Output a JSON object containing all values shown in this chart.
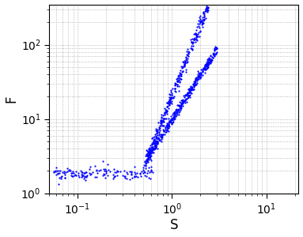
{
  "xlabel": "S",
  "ylabel": "F",
  "xlim": [
    0.05,
    22
  ],
  "ylim": [
    1.0,
    350
  ],
  "dot_color": "#0000FF",
  "dot_size": 2.5,
  "background_color": "#ffffff",
  "grid_color": "#aaaaaa",
  "seed": 42,
  "n_flat": 150,
  "n_rising": 1200,
  "x_flat_min": 0.055,
  "x_flat_max": 0.65,
  "y_flat_mean": 1.85,
  "x_rise_min": 0.5,
  "x_rise_max": 20,
  "power_main": 3.2,
  "power_lower": 2.0,
  "scatter_main": 0.12,
  "scatter_lower": 0.08
}
